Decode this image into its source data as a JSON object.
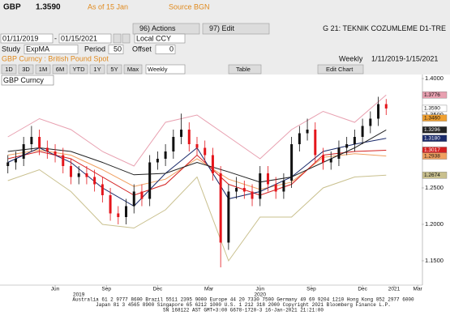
{
  "header": {
    "ticker": "GBP",
    "price": "1.3590",
    "as_of": "As of 15 Jan",
    "source": "Source BGN",
    "actions": "96) Actions",
    "edit": "97) Edit",
    "page": "G 21: TEKNIK COZUMLEME D1-TRE"
  },
  "controls": {
    "start": "01/11/2019",
    "dash": "-",
    "end": "01/15/2021",
    "currency": "Local CCY",
    "study_label": "Study",
    "study": "ExpMA",
    "period_label": "Period",
    "period": "50",
    "offset_label": "Offset",
    "offset": "0",
    "security": "GBP Curncy : British Pound Spot",
    "frequency": "Weekly",
    "range": "1/11/2019-1/15/2021"
  },
  "toolbar": {
    "ranges": [
      "1D",
      "3D",
      "1M",
      "6M",
      "YTD",
      "1Y",
      "5Y",
      "Max"
    ],
    "frequency": "Weekly",
    "table": "Table",
    "edit_chart": "Edit Chart"
  },
  "chart_data": {
    "type": "candlestick",
    "title": "GBP Curncy",
    "xlim": [
      4,
      111
    ],
    "ylim": [
      1.1244,
      1.4078
    ],
    "yticks": [
      {
        "value": 1.15,
        "label": "1.1500"
      },
      {
        "value": 1.2,
        "label": "1.2000"
      },
      {
        "value": 1.25,
        "label": "1.2500"
      },
      {
        "value": 1.3,
        "label": "1.3000"
      },
      {
        "value": 1.35,
        "label": "1.3500"
      },
      {
        "value": 1.4,
        "label": "1.4000"
      }
    ],
    "xticks": [
      {
        "value": 18,
        "label": "Jun"
      },
      {
        "value": 31,
        "label": "Sep"
      },
      {
        "value": 44,
        "label": "Dec"
      },
      {
        "value": 57,
        "label": "Mar"
      },
      {
        "value": 70,
        "label": "Jun"
      },
      {
        "value": 83,
        "label": "Sep"
      },
      {
        "value": 96,
        "label": "Dec"
      },
      {
        "value": 104,
        "label": "2021"
      },
      {
        "value": 110,
        "label": "Mar"
      }
    ],
    "year_labels": [
      {
        "value": 24,
        "label": "2019"
      },
      {
        "value": 70,
        "label": "2020"
      }
    ],
    "up_color": "#111111",
    "down_color": "#e4151b",
    "candles": {
      "x": [
        6,
        8,
        10,
        12,
        14,
        16,
        18,
        20,
        22,
        24,
        26,
        28,
        30,
        32,
        34,
        36,
        38,
        40,
        42,
        44,
        46,
        48,
        50,
        52,
        54,
        56,
        58,
        60,
        62,
        64,
        66,
        68,
        70,
        72,
        74,
        76,
        78,
        80,
        82,
        84,
        86,
        88,
        90,
        92,
        94,
        96,
        98,
        100,
        102
      ],
      "open": [
        1.28,
        1.285,
        1.29,
        1.31,
        1.32,
        1.305,
        1.3,
        1.295,
        1.28,
        1.265,
        1.27,
        1.265,
        1.255,
        1.24,
        1.215,
        1.21,
        1.225,
        1.245,
        1.235,
        1.285,
        1.29,
        1.3,
        1.32,
        1.33,
        1.31,
        1.305,
        1.295,
        1.27,
        1.175,
        1.245,
        1.25,
        1.245,
        1.235,
        1.27,
        1.255,
        1.245,
        1.26,
        1.31,
        1.325,
        1.33,
        1.295,
        1.285,
        1.29,
        1.305,
        1.31,
        1.32,
        1.335,
        1.345,
        1.365
      ],
      "high": [
        1.295,
        1.3,
        1.32,
        1.335,
        1.33,
        1.315,
        1.31,
        1.305,
        1.29,
        1.28,
        1.28,
        1.275,
        1.265,
        1.25,
        1.225,
        1.235,
        1.255,
        1.255,
        1.295,
        1.3,
        1.31,
        1.33,
        1.352,
        1.34,
        1.32,
        1.315,
        1.305,
        1.28,
        1.255,
        1.265,
        1.26,
        1.255,
        1.28,
        1.28,
        1.265,
        1.27,
        1.32,
        1.335,
        1.345,
        1.34,
        1.305,
        1.3,
        1.315,
        1.32,
        1.33,
        1.345,
        1.355,
        1.375,
        1.372
      ],
      "low": [
        1.27,
        1.275,
        1.28,
        1.3,
        1.295,
        1.29,
        1.285,
        1.27,
        1.255,
        1.255,
        1.255,
        1.245,
        1.23,
        1.205,
        1.2,
        1.2,
        1.215,
        1.225,
        1.225,
        1.275,
        1.28,
        1.29,
        1.31,
        1.3,
        1.295,
        1.285,
        1.26,
        1.141,
        1.165,
        1.235,
        1.235,
        1.225,
        1.225,
        1.245,
        1.235,
        1.235,
        1.25,
        1.3,
        1.315,
        1.285,
        1.275,
        1.275,
        1.28,
        1.295,
        1.3,
        1.31,
        1.325,
        1.335,
        1.35
      ],
      "close": [
        1.285,
        1.29,
        1.31,
        1.32,
        1.305,
        1.3,
        1.295,
        1.28,
        1.265,
        1.27,
        1.265,
        1.255,
        1.24,
        1.215,
        1.21,
        1.225,
        1.245,
        1.235,
        1.285,
        1.29,
        1.3,
        1.32,
        1.33,
        1.31,
        1.305,
        1.295,
        1.27,
        1.175,
        1.245,
        1.25,
        1.245,
        1.235,
        1.27,
        1.255,
        1.245,
        1.26,
        1.31,
        1.325,
        1.33,
        1.295,
        1.285,
        1.29,
        1.305,
        1.31,
        1.32,
        1.335,
        1.345,
        1.365,
        1.359
      ]
    },
    "lines": [
      {
        "color": "#e8a0b0",
        "x": [
          6,
          14,
          22,
          30,
          38,
          46,
          54,
          62,
          70,
          78,
          86,
          94,
          102
        ],
        "values": [
          1.32,
          1.345,
          1.33,
          1.3,
          1.28,
          1.34,
          1.35,
          1.32,
          1.29,
          1.33,
          1.355,
          1.34,
          1.3776
        ]
      },
      {
        "color": "#c9c08e",
        "x": [
          6,
          14,
          22,
          30,
          38,
          46,
          54,
          62,
          70,
          78,
          86,
          94,
          102
        ],
        "values": [
          1.26,
          1.275,
          1.245,
          1.2,
          1.195,
          1.22,
          1.265,
          1.15,
          1.21,
          1.21,
          1.25,
          1.265,
          1.2674
        ]
      },
      {
        "color": "#f0a060",
        "x": [
          6,
          14,
          22,
          30,
          38,
          46,
          54,
          62,
          70,
          78,
          86,
          94,
          102
        ],
        "values": [
          1.295,
          1.302,
          1.295,
          1.275,
          1.252,
          1.262,
          1.29,
          1.262,
          1.248,
          1.258,
          1.292,
          1.297,
          1.2938
        ]
      },
      {
        "color": "#d42020",
        "x": [
          6,
          14,
          22,
          30,
          38,
          46,
          54,
          62,
          70,
          78,
          86,
          94,
          102
        ],
        "values": [
          1.29,
          1.3,
          1.29,
          1.265,
          1.24,
          1.255,
          1.295,
          1.255,
          1.24,
          1.255,
          1.295,
          1.3,
          1.3017
        ]
      },
      {
        "color": "#1a2a6a",
        "x": [
          6,
          14,
          22,
          30,
          38,
          46,
          54,
          62,
          70,
          78,
          86,
          94,
          102
        ],
        "values": [
          1.285,
          1.305,
          1.285,
          1.25,
          1.225,
          1.27,
          1.305,
          1.235,
          1.245,
          1.265,
          1.3,
          1.31,
          1.318
        ]
      },
      {
        "color": "#222222",
        "x": [
          6,
          14,
          22,
          30,
          38,
          46,
          54,
          62,
          70,
          78,
          86,
          94,
          102
        ],
        "values": [
          1.3,
          1.305,
          1.3,
          1.285,
          1.268,
          1.27,
          1.285,
          1.272,
          1.258,
          1.265,
          1.285,
          1.305,
          1.3296
        ]
      }
    ],
    "price_labels": [
      1.3776,
      {
        "value": 1.359,
        "label": "1.3590"
      },
      {
        "value": 1.346,
        "label": "1.3460"
      },
      1.3296,
      {
        "value": 1.318,
        "label": "1.3180"
      },
      1.3017,
      1.2938,
      1.2674
    ],
    "price_label_colors": [
      "#e8a0b0",
      "#ffffff",
      "#f0a030",
      "#222222",
      "#1a2a6a",
      "#d42020",
      "#f0a060",
      "#c9c08e"
    ]
  },
  "footer": {
    "lines": [
      "Australia 61 2 9777 8600 Brazil 5511 2395 9000 Europe 44 20 7330 7500 Germany 49 69 9204 1210 Hong Kong 852 2977 6000",
      "Japan 81 3 4565 8900 Singapore 65 6212 1000 U.S. 1 212 318 2000 Copyright 2021 Bloomberg Finance L.P.",
      "SN 168122 AST GMT+3:00 G678-1720-3 16-Jan-2021 21:21:00"
    ]
  }
}
